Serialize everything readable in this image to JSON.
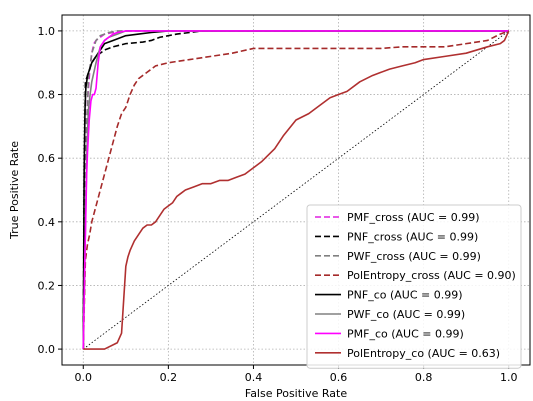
{
  "chart_data": {
    "type": "line",
    "title": "",
    "xlabel": "False Positive Rate",
    "ylabel": "True Positive Rate",
    "xlim": [
      -0.05,
      1.05
    ],
    "ylim": [
      -0.05,
      1.05
    ],
    "xticks": [
      "0.0",
      "0.2",
      "0.4",
      "0.6",
      "0.8",
      "1.0"
    ],
    "yticks": [
      "0.0",
      "0.2",
      "0.4",
      "0.6",
      "0.8",
      "1.0"
    ],
    "grid": true,
    "legend_position": "lower-right",
    "reference_line": {
      "x": [
        0,
        1
      ],
      "y": [
        0,
        1
      ],
      "style": "dotted",
      "color": "#000000"
    },
    "series": [
      {
        "name": "PMF_cross (AUC = 0.99)",
        "color": "#e020e0",
        "dash": "dashed",
        "x": [
          0,
          0.003,
          0.006,
          0.01,
          0.015,
          0.02,
          0.025,
          0.03,
          0.04,
          0.05,
          0.07,
          0.1,
          1.0
        ],
        "y": [
          0,
          0.3,
          0.6,
          0.78,
          0.87,
          0.93,
          0.96,
          0.97,
          0.98,
          0.99,
          0.995,
          1.0,
          1.0
        ]
      },
      {
        "name": "PNF_cross (AUC = 0.99)",
        "color": "#000000",
        "dash": "dashed",
        "x": [
          0,
          0.002,
          0.005,
          0.01,
          0.015,
          0.02,
          0.03,
          0.05,
          0.07,
          0.1,
          0.14,
          0.16,
          0.18,
          0.2,
          0.22,
          0.25,
          0.28,
          0.3,
          1.0
        ],
        "y": [
          0,
          0.5,
          0.84,
          0.86,
          0.88,
          0.9,
          0.92,
          0.94,
          0.95,
          0.96,
          0.965,
          0.97,
          0.98,
          0.985,
          0.99,
          0.995,
          1.0,
          1.0,
          1.0
        ]
      },
      {
        "name": "PWF_cross (AUC = 0.99)",
        "color": "#808080",
        "dash": "dashed",
        "x": [
          0,
          0.004,
          0.008,
          0.012,
          0.02,
          0.03,
          0.04,
          0.05,
          0.06,
          0.08,
          1.0
        ],
        "y": [
          0,
          0.4,
          0.7,
          0.85,
          0.93,
          0.97,
          0.985,
          0.99,
          0.995,
          1.0,
          1.0
        ]
      },
      {
        "name": "PolEntropy_cross (AUC = 0.90)",
        "color": "#a52a2a",
        "dash": "dashed",
        "x": [
          0,
          0.005,
          0.01,
          0.015,
          0.02,
          0.03,
          0.04,
          0.05,
          0.06,
          0.07,
          0.08,
          0.09,
          0.1,
          0.11,
          0.12,
          0.13,
          0.15,
          0.17,
          0.2,
          0.25,
          0.3,
          0.35,
          0.4,
          0.45,
          0.5,
          0.55,
          0.6,
          0.65,
          0.7,
          0.75,
          0.8,
          0.85,
          0.9,
          0.95,
          0.98,
          1.0
        ],
        "y": [
          0,
          0.28,
          0.33,
          0.36,
          0.4,
          0.45,
          0.5,
          0.55,
          0.6,
          0.65,
          0.7,
          0.74,
          0.76,
          0.8,
          0.83,
          0.85,
          0.87,
          0.89,
          0.9,
          0.91,
          0.92,
          0.93,
          0.945,
          0.945,
          0.945,
          0.945,
          0.945,
          0.945,
          0.945,
          0.95,
          0.95,
          0.95,
          0.96,
          0.97,
          0.99,
          1.0
        ]
      },
      {
        "name": "PNF_co (AUC = 0.99)",
        "color": "#000000",
        "dash": "solid",
        "x": [
          0,
          0.002,
          0.004,
          0.006,
          0.01,
          0.015,
          0.02,
          0.03,
          0.04,
          0.05,
          0.07,
          0.1,
          0.13,
          0.16,
          0.2,
          1.0
        ],
        "y": [
          0,
          0.55,
          0.75,
          0.82,
          0.86,
          0.88,
          0.9,
          0.92,
          0.94,
          0.96,
          0.97,
          0.985,
          0.99,
          0.995,
          1.0,
          1.0
        ]
      },
      {
        "name": "PWF_co (AUC = 0.99)",
        "color": "#808080",
        "dash": "solid",
        "x": [
          0,
          0.004,
          0.008,
          0.012,
          0.016,
          0.02,
          0.03,
          0.04,
          0.05,
          0.06,
          0.08,
          0.1,
          1.0
        ],
        "y": [
          0,
          0.3,
          0.6,
          0.75,
          0.8,
          0.84,
          0.9,
          0.95,
          0.97,
          0.98,
          0.99,
          1.0,
          1.0
        ]
      },
      {
        "name": "PMF_co (AUC = 0.99)",
        "color": "#ff00ff",
        "dash": "solid",
        "x": [
          0,
          0.004,
          0.008,
          0.01,
          0.014,
          0.018,
          0.022,
          0.026,
          0.03,
          0.035,
          0.04,
          0.05,
          0.06,
          0.07,
          0.08,
          0.1,
          1.0
        ],
        "y": [
          0,
          0.3,
          0.55,
          0.62,
          0.72,
          0.78,
          0.8,
          0.8,
          0.82,
          0.9,
          0.95,
          0.97,
          0.98,
          0.99,
          0.995,
          1.0,
          1.0
        ]
      },
      {
        "name": "PolEntropy_co (AUC = 0.63)",
        "color": "#b03030",
        "dash": "solid",
        "x": [
          0,
          0.02,
          0.05,
          0.08,
          0.09,
          0.1,
          0.105,
          0.11,
          0.12,
          0.13,
          0.14,
          0.15,
          0.16,
          0.17,
          0.18,
          0.19,
          0.2,
          0.21,
          0.22,
          0.23,
          0.24,
          0.26,
          0.28,
          0.3,
          0.32,
          0.34,
          0.36,
          0.38,
          0.4,
          0.42,
          0.45,
          0.47,
          0.5,
          0.53,
          0.55,
          0.58,
          0.6,
          0.62,
          0.65,
          0.68,
          0.7,
          0.72,
          0.75,
          0.78,
          0.8,
          0.85,
          0.9,
          0.95,
          0.98,
          0.99,
          1.0
        ],
        "y": [
          0,
          0,
          0,
          0.02,
          0.05,
          0.26,
          0.29,
          0.31,
          0.34,
          0.36,
          0.38,
          0.39,
          0.39,
          0.4,
          0.42,
          0.44,
          0.45,
          0.46,
          0.48,
          0.49,
          0.5,
          0.51,
          0.52,
          0.52,
          0.53,
          0.53,
          0.54,
          0.55,
          0.57,
          0.59,
          0.63,
          0.67,
          0.72,
          0.74,
          0.76,
          0.79,
          0.8,
          0.81,
          0.84,
          0.86,
          0.87,
          0.88,
          0.89,
          0.9,
          0.91,
          0.92,
          0.93,
          0.95,
          0.96,
          0.97,
          1.0
        ]
      }
    ]
  }
}
